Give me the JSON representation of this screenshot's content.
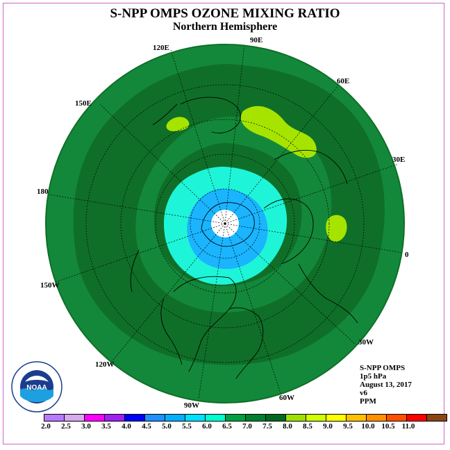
{
  "title": "S-NPP OMPS OZONE MIXING RATIO",
  "subtitle": "Northern Hemisphere",
  "longitude_labels": [
    "90E",
    "60E",
    "30E",
    "0",
    "30W",
    "60W",
    "90W",
    "120W",
    "150W",
    "180",
    "150E",
    "120E"
  ],
  "info": {
    "instrument": "S-NPP OMPS",
    "level": "1p5 hPa",
    "date": "August 13, 2017",
    "version": "v6",
    "units": "PPM"
  },
  "logo": {
    "text": "NOAA"
  },
  "colorbar": {
    "ticks": [
      "2.0",
      "2.5",
      "3.0",
      "3.5",
      "4.0",
      "4.5",
      "5.0",
      "5.5",
      "6.0",
      "6.5",
      "7.0",
      "7.5",
      "8.0",
      "8.5",
      "9.0",
      "9.5",
      "10.0",
      "10.5",
      "11.0"
    ],
    "colors": [
      "#b87aff",
      "#d8a8f0",
      "#ff00ff",
      "#a020f0",
      "#0000ff",
      "#1e90ff",
      "#00b0ff",
      "#00e0ff",
      "#00ffd0",
      "#00a040",
      "#008030",
      "#006820",
      "#a0e000",
      "#d0ff00",
      "#ffff00",
      "#ffc000",
      "#ff9000",
      "#ff5000",
      "#ff0000",
      "#8b4513"
    ]
  },
  "colors": {
    "ring_outer": "#13883a",
    "ring_dark": "#0f7028",
    "ring_mid": "#13883a",
    "cyan_light": "#1ef5d8",
    "cyan_blue": "#1ab4ff",
    "pole": "#ffffff",
    "patch": "#a6e400"
  }
}
